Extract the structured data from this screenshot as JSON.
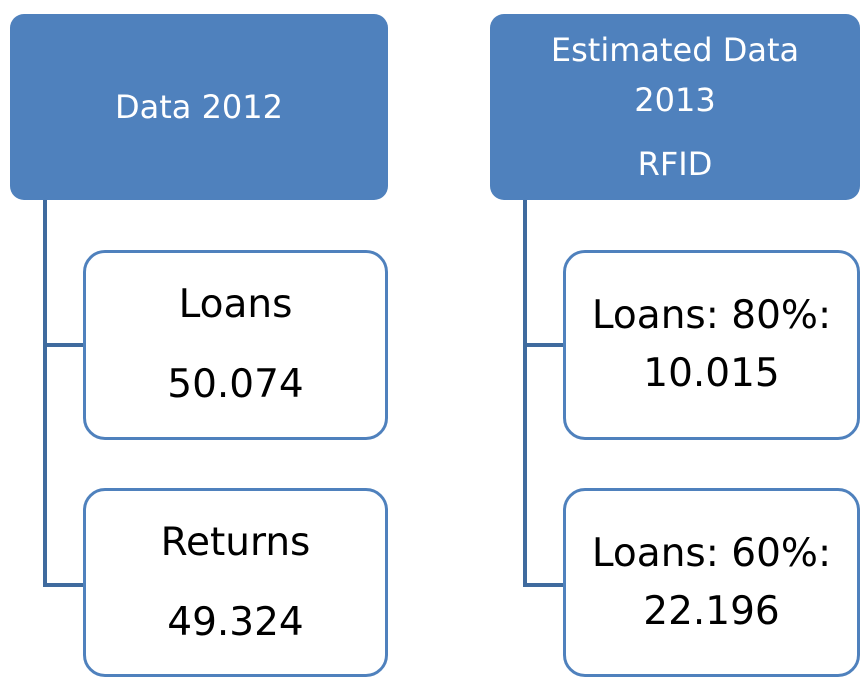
{
  "columns": [
    {
      "header": {
        "lines": [
          "Data 2012"
        ]
      },
      "children": [
        {
          "lines": [
            "Loans",
            "50.074"
          ]
        },
        {
          "lines": [
            "Returns",
            "49.324"
          ]
        }
      ]
    },
    {
      "header": {
        "lines": [
          "Estimated Data",
          "2013",
          "RFID"
        ]
      },
      "children": [
        {
          "lines": [
            "Loans: 80%:",
            "10.015"
          ]
        },
        {
          "lines": [
            "Loans: 60%:",
            "22.196"
          ]
        }
      ]
    }
  ]
}
